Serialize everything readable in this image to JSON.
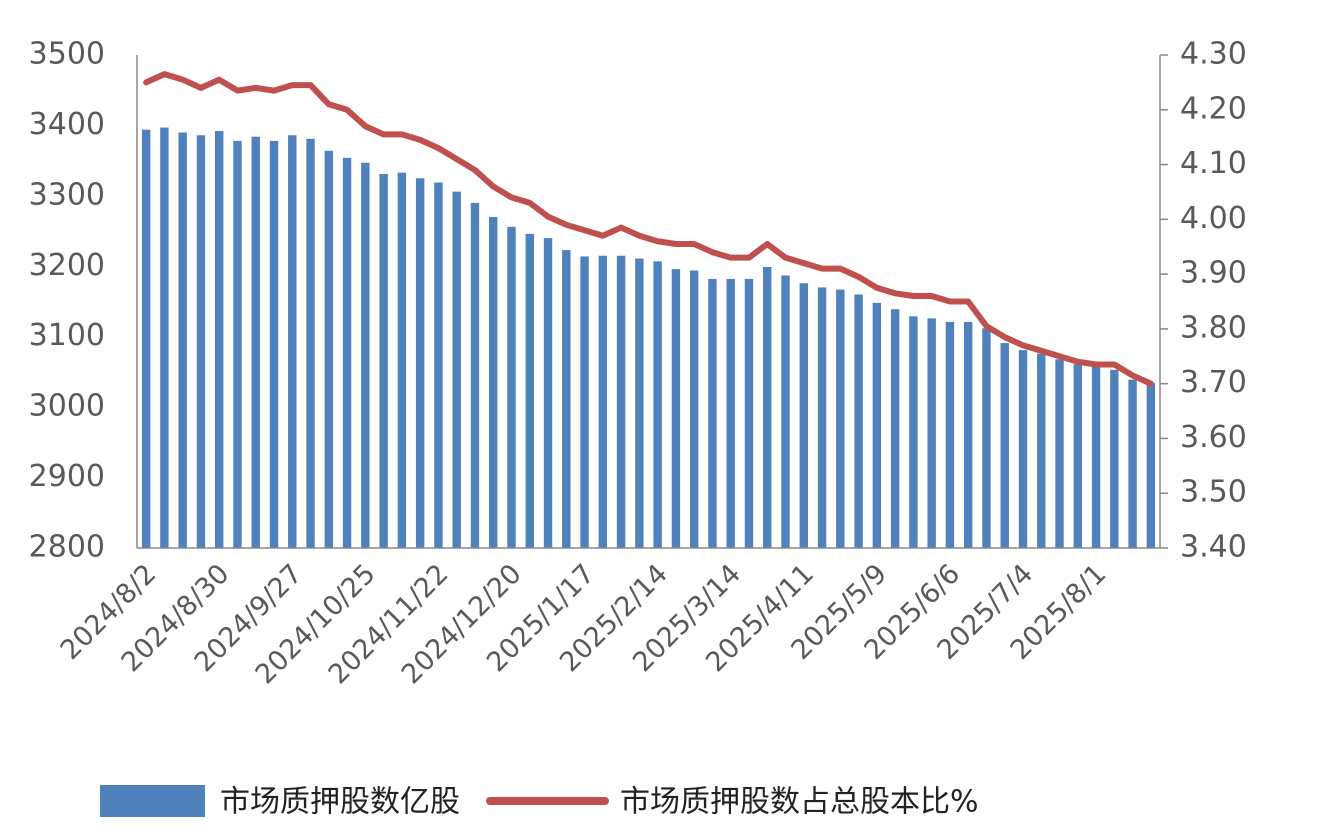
{
  "chart_data": {
    "type": "bar_line",
    "categories": [
      "2024/8/2",
      null,
      null,
      null,
      "2024/8/30",
      null,
      null,
      null,
      "2024/9/27",
      null,
      null,
      null,
      "2024/10/25",
      null,
      null,
      null,
      "2024/11/22",
      null,
      null,
      null,
      "2024/12/20",
      null,
      null,
      null,
      "2025/1/17",
      null,
      null,
      null,
      "2025/2/14",
      null,
      null,
      null,
      "2025/3/14",
      null,
      null,
      null,
      "2025/4/11",
      null,
      null,
      null,
      "2025/5/9",
      null,
      null,
      null,
      "2025/6/6",
      null,
      null,
      null,
      "2025/7/4",
      null,
      null,
      null,
      "2025/8/1",
      null,
      null,
      null
    ],
    "series": [
      {
        "name": "市场质押股数亿股",
        "type": "bar",
        "color": "#4f81bd",
        "values": [
          3394,
          3397,
          3390,
          3386,
          3392,
          3378,
          3384,
          3378,
          3386,
          3381,
          3364,
          3354,
          3347,
          3331,
          3333,
          3325,
          3319,
          3306,
          3290,
          3270,
          3256,
          3246,
          3240,
          3223,
          3214,
          3215,
          3215,
          3211,
          3207,
          3196,
          3194,
          3182,
          3182,
          3182,
          3199,
          3187,
          3176,
          3170,
          3167,
          3160,
          3148,
          3139,
          3129,
          3126,
          3121,
          3121,
          3112,
          3091,
          3081,
          3076,
          3068,
          3061,
          3057,
          3053,
          3039,
          3034
        ]
      },
      {
        "name": "市场质押股数占总股本比%",
        "type": "line",
        "axis": "y2",
        "color": "#c0504d",
        "values": [
          4.25,
          4.265,
          4.255,
          4.24,
          4.255,
          4.235,
          4.24,
          4.235,
          4.245,
          4.245,
          4.21,
          4.2,
          4.17,
          4.155,
          4.155,
          4.145,
          4.13,
          4.11,
          4.09,
          4.06,
          4.04,
          4.03,
          4.005,
          3.99,
          3.98,
          3.97,
          3.985,
          3.97,
          3.96,
          3.955,
          3.955,
          3.94,
          3.93,
          3.93,
          3.955,
          3.93,
          3.92,
          3.91,
          3.91,
          3.895,
          3.875,
          3.865,
          3.86,
          3.86,
          3.85,
          3.85,
          3.805,
          3.785,
          3.77,
          3.76,
          3.75,
          3.74,
          3.735,
          3.735,
          3.715,
          3.7
        ]
      }
    ],
    "ylim": [
      2800,
      3500
    ],
    "yticks": [
      2800,
      2900,
      3000,
      3100,
      3200,
      3300,
      3400,
      3500
    ],
    "y2lim": [
      3.4,
      4.3
    ],
    "y2ticks": [
      {
        "value": 3.4,
        "label": "3.40"
      },
      {
        "value": 3.5,
        "label": "3.50"
      },
      {
        "value": 3.6,
        "label": "3.60"
      },
      {
        "value": 3.7,
        "label": "3.70"
      },
      {
        "value": 3.8,
        "label": "3.80"
      },
      {
        "value": 3.9,
        "label": "3.90"
      },
      {
        "value": 4.0,
        "label": "4.00"
      },
      {
        "value": 4.1,
        "label": "4.10"
      },
      {
        "value": 4.2,
        "label": "4.20"
      },
      {
        "value": 4.3,
        "label": "4.30"
      }
    ],
    "legend": "bottom",
    "grid": false
  }
}
